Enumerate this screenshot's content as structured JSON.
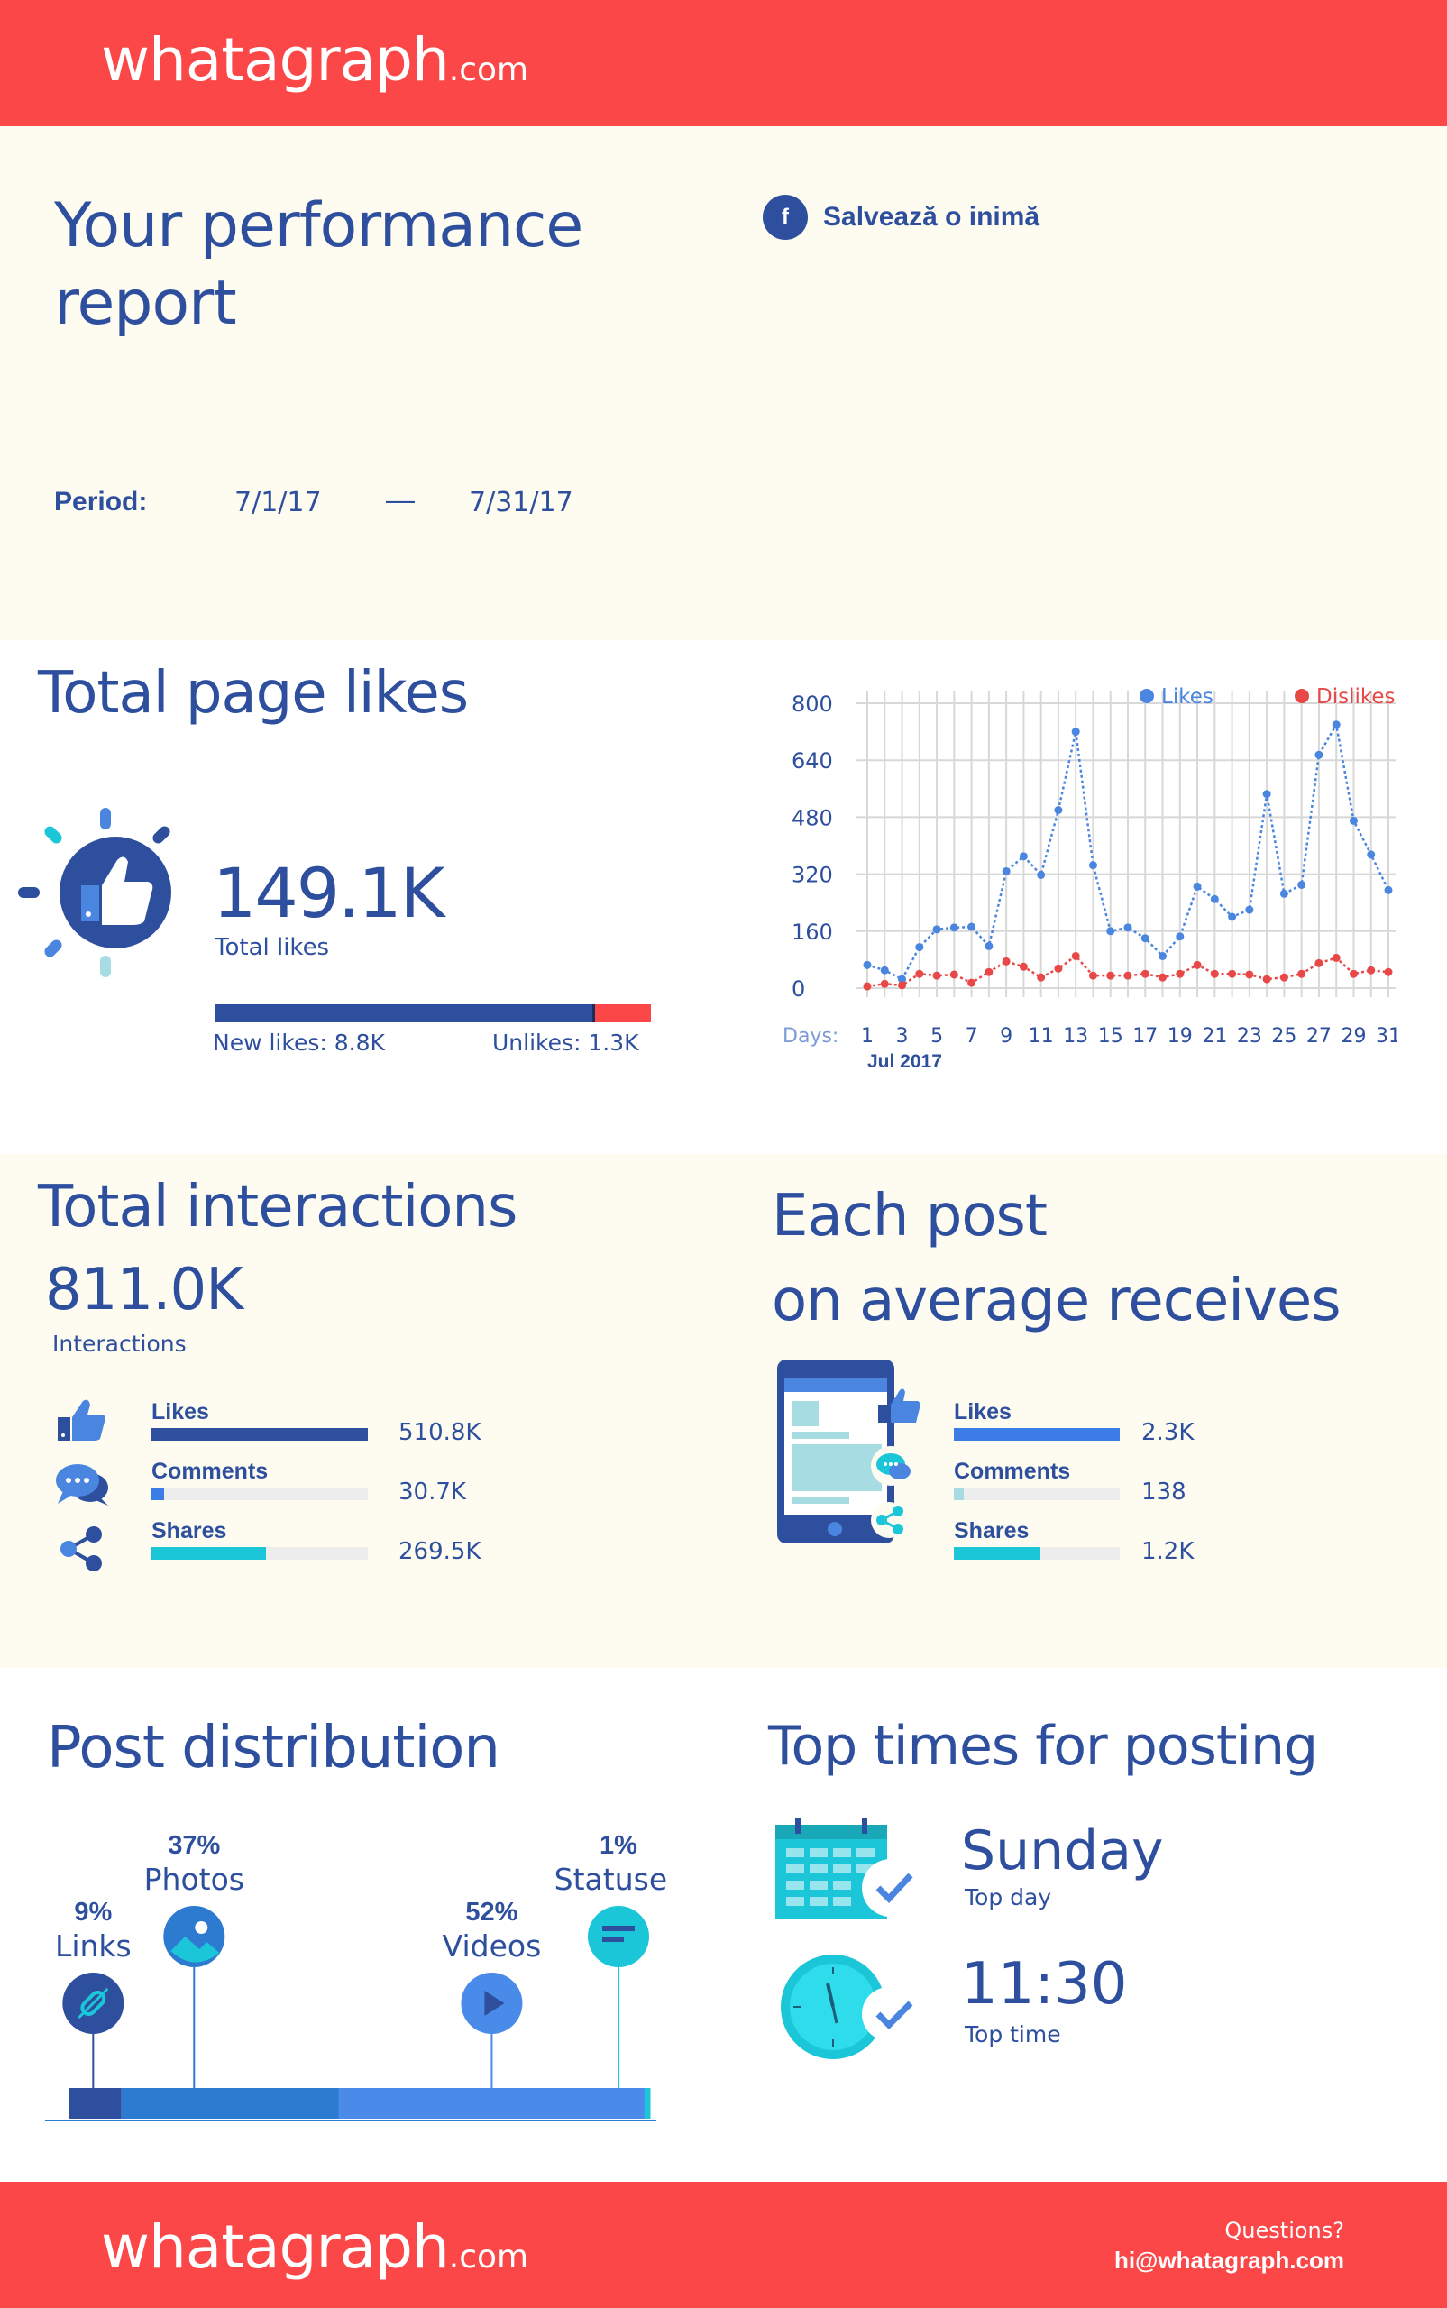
{
  "brand": {
    "name": "whatagraph",
    "suffix": ".com",
    "color": "#fc4748"
  },
  "header": {
    "title_line1": "Your performance",
    "title_line2": "report",
    "page_name": "Salvează o inimă",
    "page_icon": "facebook-icon",
    "period_label": "Period:",
    "period_start": "7/1/17",
    "period_sep": "—",
    "period_end": "7/31/17"
  },
  "likes": {
    "title": "Total page likes",
    "total": "149.1K",
    "total_label": "Total likes",
    "new_likes": "New likes: 8.8K",
    "unlikes": "Unlikes: 1.3K",
    "new_fraction": 0.871,
    "icon": "thumbs-up-icon"
  },
  "chart_data": {
    "type": "line",
    "x_prefix": "Days:",
    "x_caption": "Jul 2017",
    "x": [
      1,
      2,
      3,
      4,
      5,
      6,
      7,
      8,
      9,
      10,
      11,
      12,
      13,
      14,
      15,
      16,
      17,
      18,
      19,
      20,
      21,
      22,
      23,
      24,
      25,
      26,
      27,
      28,
      29,
      30,
      31
    ],
    "x_ticks": [
      "1",
      "3",
      "5",
      "7",
      "9",
      "11",
      "13",
      "15",
      "17",
      "19",
      "21",
      "23",
      "25",
      "27",
      "29",
      "31"
    ],
    "y_ticks": [
      "0",
      "160",
      "320",
      "480",
      "640",
      "800"
    ],
    "ylim": [
      0,
      800
    ],
    "legend_position": "top-right",
    "grid": true,
    "series": [
      {
        "name": "Likes",
        "color": "#4a86e0",
        "values": [
          65,
          50,
          25,
          115,
          165,
          170,
          172,
          118,
          328,
          370,
          318,
          500,
          720,
          345,
          160,
          170,
          140,
          90,
          145,
          285,
          250,
          200,
          220,
          545,
          265,
          290,
          655,
          740,
          470,
          375,
          275
        ]
      },
      {
        "name": "Dislikes",
        "color": "#e84848",
        "values": [
          5,
          12,
          8,
          40,
          35,
          38,
          15,
          45,
          75,
          60,
          30,
          55,
          90,
          35,
          35,
          35,
          40,
          30,
          40,
          65,
          40,
          40,
          38,
          25,
          30,
          40,
          70,
          85,
          40,
          50,
          45
        ]
      }
    ]
  },
  "interactions": {
    "title": "Total interactions",
    "total": "811.0K",
    "total_label": "Interactions",
    "items": [
      {
        "label": "Likes",
        "value": "510.8K",
        "fraction": 1.0,
        "color": "#2d4f9e",
        "icon": "thumbs-up-icon"
      },
      {
        "label": "Comments",
        "value": "30.7K",
        "fraction": 0.06,
        "color": "#3c7ce6",
        "icon": "comment-icon"
      },
      {
        "label": "Shares",
        "value": "269.5K",
        "fraction": 0.53,
        "color": "#1bc6d8",
        "icon": "share-icon"
      }
    ]
  },
  "average": {
    "title_line1": "Each post",
    "title_line2": "on average receives",
    "icon": "phone-icon",
    "items": [
      {
        "label": "Likes",
        "value": "2.3K",
        "fraction": 1.0,
        "color": "#3c7ce6"
      },
      {
        "label": "Comments",
        "value": "138",
        "fraction": 0.06,
        "color": "#a8dce3"
      },
      {
        "label": "Shares",
        "value": "1.2K",
        "fraction": 0.52,
        "color": "#1bc6d8"
      }
    ]
  },
  "distribution": {
    "title": "Post distribution",
    "items": [
      {
        "pct": "9%",
        "label": "Links",
        "share": 0.09,
        "color": "#2d4f9e",
        "icon": "link-icon"
      },
      {
        "pct": "37%",
        "label": "Photos",
        "share": 0.37,
        "color": "#2d7bd0",
        "icon": "photo-icon"
      },
      {
        "pct": "52%",
        "label": "Videos",
        "share": 0.52,
        "color": "#4a8bea",
        "icon": "video-play-icon"
      },
      {
        "pct": "1%",
        "label": "Statuses",
        "share": 0.01,
        "color": "#1bc6d8",
        "icon": "status-text-icon"
      }
    ]
  },
  "top_times": {
    "title": "Top times for posting",
    "day": "Sunday",
    "day_label": "Top day",
    "time": "11:30",
    "time_label": "Top time",
    "day_icon": "calendar-icon",
    "time_icon": "clock-icon"
  },
  "footer": {
    "questions": "Questions?",
    "email": "hi@whatagraph.com"
  }
}
